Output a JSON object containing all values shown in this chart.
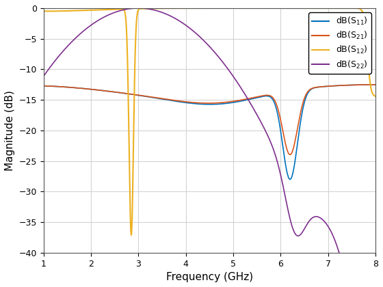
{
  "xlabel": "Frequency (GHz)",
  "ylabel": "Magnitude (dB)",
  "xlim": [
    1,
    8
  ],
  "ylim": [
    -40,
    0
  ],
  "yticks": [
    0,
    -5,
    -10,
    -15,
    -20,
    -25,
    -30,
    -35,
    -40
  ],
  "xticks": [
    1,
    2,
    3,
    4,
    5,
    6,
    7,
    8
  ],
  "colors": {
    "S11": "#0072BD",
    "S21": "#D95319",
    "S12": "#EDB120",
    "S22": "#7E2F8E"
  },
  "background_color": "#ffffff",
  "grid_color": "#d3d3d3"
}
